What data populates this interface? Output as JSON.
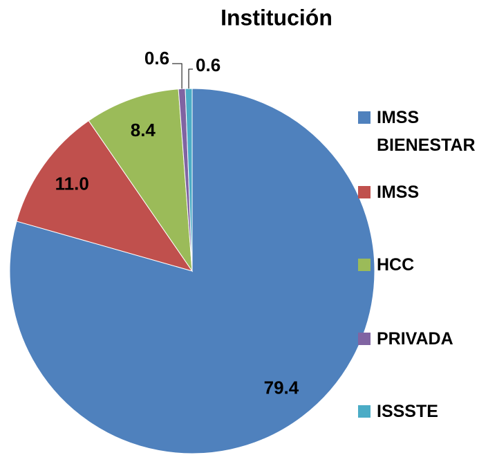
{
  "chart_data": {
    "type": "pie",
    "title": "Institución",
    "categories": [
      "IMSS BIENESTAR",
      "IMSS",
      "HCC",
      "PRIVADA",
      "ISSSTE"
    ],
    "values": [
      79.4,
      11.0,
      8.4,
      0.6,
      0.6
    ],
    "value_labels": [
      "79.4",
      "11.0",
      "8.4",
      "0.6",
      "0.6"
    ],
    "colors": [
      "#4f81bd",
      "#c0504d",
      "#9bbb59",
      "#8064a2",
      "#4bacc6"
    ],
    "legend": "right"
  }
}
